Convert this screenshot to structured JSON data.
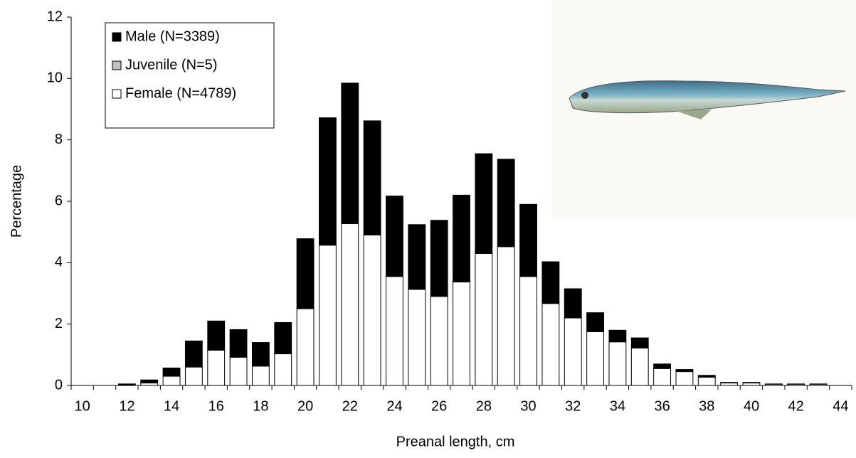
{
  "chart_data": {
    "type": "stacked_bar",
    "x_label": "Preanal length, cm",
    "y_label": "Percentage",
    "categories": [
      "10",
      null,
      "12",
      null,
      "14",
      null,
      "16",
      null,
      "18",
      null,
      "20",
      null,
      "22",
      null,
      "24",
      null,
      "26",
      null,
      "28",
      null,
      "30",
      null,
      "32",
      null,
      "34",
      null,
      "36",
      null,
      "38",
      null,
      "40",
      null,
      "42",
      null,
      "44"
    ],
    "series": [
      {
        "name": "Female (N=4789)",
        "color": "#ffffff",
        "values": [
          0,
          0,
          0.02,
          0.08,
          0.3,
          0.6,
          1.15,
          0.92,
          0.63,
          1.03,
          2.5,
          4.57,
          5.27,
          4.9,
          3.55,
          3.13,
          2.9,
          3.37,
          4.3,
          4.52,
          3.55,
          2.67,
          2.2,
          1.75,
          1.42,
          1.22,
          0.55,
          0.45,
          0.27,
          0.08,
          0.08,
          0.04,
          0.04,
          0.04,
          0
        ]
      },
      {
        "name": "Juvenile (N=5)",
        "color": "#c0c0c0",
        "values": [
          0,
          0,
          0,
          0,
          0,
          0,
          0,
          0,
          0,
          0,
          0,
          0,
          0,
          0,
          0,
          0,
          0,
          0,
          0,
          0,
          0,
          0,
          0,
          0,
          0,
          0,
          0,
          0,
          0,
          0,
          0,
          0,
          0,
          0,
          0
        ]
      },
      {
        "name": "Male (N=3389)",
        "color": "#000000",
        "values": [
          0,
          0,
          0.03,
          0.1,
          0.27,
          0.85,
          0.95,
          0.9,
          0.77,
          1.02,
          2.28,
          4.15,
          4.58,
          3.72,
          2.62,
          2.11,
          2.48,
          2.83,
          3.25,
          2.85,
          2.35,
          1.36,
          0.95,
          0.62,
          0.38,
          0.33,
          0.15,
          0.07,
          0.06,
          0.02,
          0.02,
          0.01,
          0.01,
          0.01,
          0
        ]
      }
    ],
    "ylim": [
      0,
      12
    ],
    "yticks": [
      0,
      2,
      4,
      6,
      8,
      10,
      12
    ],
    "legend": "top-left"
  }
}
